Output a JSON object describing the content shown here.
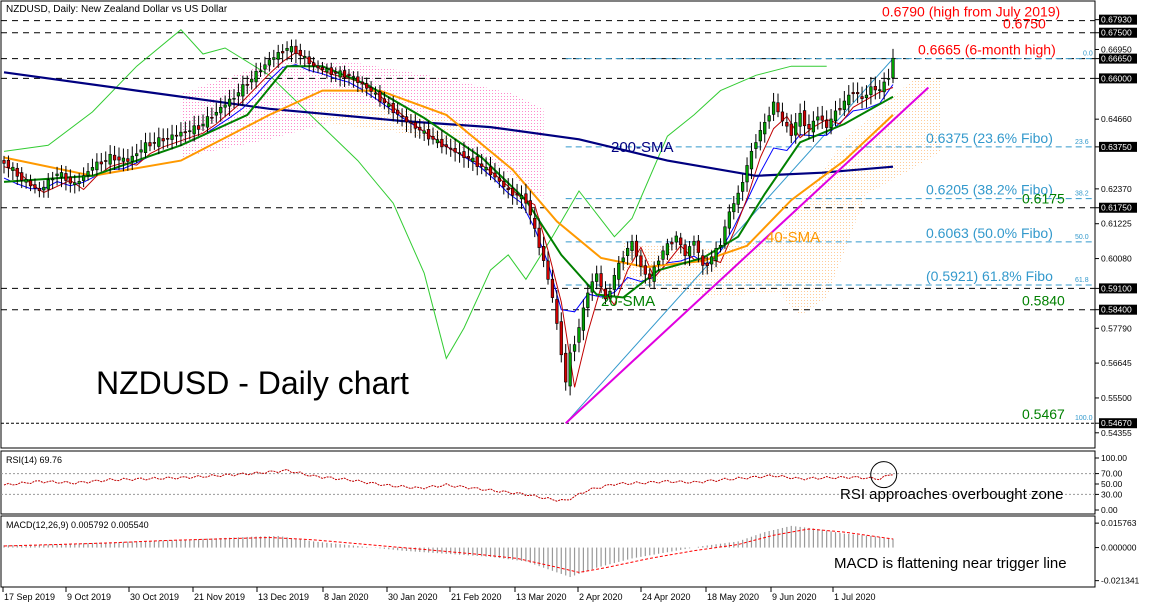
{
  "header": {
    "title": "NZDUSD, Daily:  New Zealand Dollar vs US Dollar",
    "big_title": "NZDUSD - Daily chart"
  },
  "colors": {
    "candle_up": "#00a000",
    "candle_down": "#d00000",
    "sma20": "#008000",
    "sma40": "#ff9900",
    "sma200": "#000080",
    "fast_line": "#c00000",
    "slow_line": "#0000ff",
    "lagging_span": "#33cc33",
    "cloud_red": "#ff88cc",
    "cloud_orange": "#ffcc99",
    "trendline": "#e000e0",
    "fibo": "#3399cc",
    "level_red": "#ff0000",
    "level_green": "#008000",
    "macd_signal": "#ff0000",
    "macd_hist": "#999999"
  },
  "chart_data": [
    {
      "type": "candlestick",
      "title": "NZDUSD, Daily:  New Zealand Dollar vs US Dollar",
      "x_labels": [
        "17 Sep 2019",
        "9 Oct 2019",
        "30 Oct 2019",
        "21 Nov 2019",
        "13 Dec 2019",
        "8 Jan 2020",
        "30 Jan 2020",
        "21 Feb 2020",
        "13 Mar 2020",
        "2 Apr 2020",
        "24 Apr 2020",
        "18 May 2020",
        "9 Jun 2020",
        "1 Jul 2020"
      ],
      "y_ticks": [
        "0.67930",
        "0.67500",
        "0.66950",
        "0.66650",
        "0.66000",
        "0.64660",
        "0.63750",
        "0.62370",
        "0.61750",
        "0.61225",
        "0.60080",
        "0.59100",
        "0.58400",
        "0.57790",
        "0.56645",
        "0.55500",
        "0.54670",
        "0.54355"
      ],
      "ylim": [
        0.5425,
        0.6805
      ],
      "ohlc_path": [
        [
          0,
          0.6325
        ],
        [
          4,
          0.627
        ],
        [
          8,
          0.623
        ],
        [
          12,
          0.629
        ],
        [
          16,
          0.625
        ],
        [
          20,
          0.631
        ],
        [
          24,
          0.634
        ],
        [
          28,
          0.633
        ],
        [
          32,
          0.638
        ],
        [
          36,
          0.64
        ],
        [
          40,
          0.642
        ],
        [
          44,
          0.644
        ],
        [
          48,
          0.649
        ],
        [
          52,
          0.654
        ],
        [
          56,
          0.66
        ],
        [
          60,
          0.666
        ],
        [
          64,
          0.67
        ],
        [
          66,
          0.669
        ],
        [
          70,
          0.664
        ],
        [
          74,
          0.662
        ],
        [
          78,
          0.661
        ],
        [
          82,
          0.657
        ],
        [
          86,
          0.652
        ],
        [
          90,
          0.647
        ],
        [
          94,
          0.643
        ],
        [
          98,
          0.639
        ],
        [
          102,
          0.636
        ],
        [
          106,
          0.633
        ],
        [
          110,
          0.629
        ],
        [
          114,
          0.623
        ],
        [
          118,
          0.62
        ],
        [
          120,
          0.61
        ],
        [
          122,
          0.6
        ],
        [
          124,
          0.588
        ],
        [
          126,
          0.57
        ],
        [
          127,
          0.56
        ],
        [
          128,
          0.569
        ],
        [
          130,
          0.578
        ],
        [
          132,
          0.59
        ],
        [
          134,
          0.596
        ],
        [
          136,
          0.587
        ],
        [
          138,
          0.595
        ],
        [
          140,
          0.602
        ],
        [
          142,
          0.606
        ],
        [
          144,
          0.598
        ],
        [
          146,
          0.594
        ],
        [
          148,
          0.601
        ],
        [
          150,
          0.605
        ],
        [
          152,
          0.608
        ],
        [
          154,
          0.602
        ],
        [
          156,
          0.607
        ],
        [
          158,
          0.598
        ],
        [
          160,
          0.601
        ],
        [
          162,
          0.606
        ],
        [
          164,
          0.616
        ],
        [
          166,
          0.622
        ],
        [
          168,
          0.631
        ],
        [
          170,
          0.64
        ],
        [
          172,
          0.645
        ],
        [
          174,
          0.652
        ],
        [
          176,
          0.646
        ],
        [
          178,
          0.642
        ],
        [
          180,
          0.648
        ],
        [
          182,
          0.643
        ],
        [
          184,
          0.648
        ],
        [
          186,
          0.644
        ],
        [
          188,
          0.649
        ],
        [
          190,
          0.652
        ],
        [
          192,
          0.656
        ],
        [
          194,
          0.653
        ],
        [
          196,
          0.657
        ],
        [
          198,
          0.656
        ],
        [
          200,
          0.661
        ],
        [
          201,
          0.666
        ]
      ],
      "sma20": [
        [
          0,
          0.626
        ],
        [
          20,
          0.628
        ],
        [
          40,
          0.638
        ],
        [
          55,
          0.648
        ],
        [
          64,
          0.664
        ],
        [
          72,
          0.664
        ],
        [
          82,
          0.658
        ],
        [
          95,
          0.647
        ],
        [
          108,
          0.634
        ],
        [
          118,
          0.62
        ],
        [
          126,
          0.602
        ],
        [
          134,
          0.589
        ],
        [
          140,
          0.588
        ],
        [
          148,
          0.597
        ],
        [
          158,
          0.601
        ],
        [
          166,
          0.608
        ],
        [
          172,
          0.622
        ],
        [
          180,
          0.639
        ],
        [
          190,
          0.645
        ],
        [
          201,
          0.654
        ]
      ],
      "sma40": [
        [
          0,
          0.634
        ],
        [
          20,
          0.628
        ],
        [
          40,
          0.633
        ],
        [
          60,
          0.648
        ],
        [
          72,
          0.656
        ],
        [
          85,
          0.656
        ],
        [
          100,
          0.648
        ],
        [
          115,
          0.63
        ],
        [
          125,
          0.613
        ],
        [
          135,
          0.601
        ],
        [
          145,
          0.598
        ],
        [
          158,
          0.6
        ],
        [
          168,
          0.605
        ],
        [
          178,
          0.62
        ],
        [
          190,
          0.633
        ],
        [
          201,
          0.648
        ]
      ],
      "sma200": [
        [
          0,
          0.662
        ],
        [
          30,
          0.656
        ],
        [
          60,
          0.65
        ],
        [
          90,
          0.646
        ],
        [
          110,
          0.644
        ],
        [
          130,
          0.64
        ],
        [
          150,
          0.633
        ],
        [
          170,
          0.628
        ],
        [
          185,
          0.629
        ],
        [
          201,
          0.631
        ]
      ],
      "trendline": [
        [
          127,
          0.5467
        ],
        [
          209,
          0.657
        ]
      ],
      "lagging_span": [
        [
          0,
          0.636
        ],
        [
          10,
          0.638
        ],
        [
          20,
          0.649
        ],
        [
          30,
          0.664
        ],
        [
          40,
          0.676
        ],
        [
          45,
          0.668
        ],
        [
          50,
          0.67
        ],
        [
          60,
          0.661
        ],
        [
          70,
          0.647
        ],
        [
          80,
          0.633
        ],
        [
          88,
          0.619
        ],
        [
          95,
          0.596
        ],
        [
          100,
          0.568
        ],
        [
          104,
          0.578
        ],
        [
          110,
          0.597
        ],
        [
          114,
          0.602
        ],
        [
          118,
          0.594
        ],
        [
          124,
          0.608
        ],
        [
          130,
          0.623
        ],
        [
          138,
          0.608
        ],
        [
          142,
          0.614
        ],
        [
          150,
          0.641
        ],
        [
          156,
          0.648
        ],
        [
          162,
          0.656
        ],
        [
          170,
          0.661
        ],
        [
          178,
          0.664
        ],
        [
          186,
          0.664
        ]
      ],
      "levels": [
        {
          "value": 0.679,
          "label": "0.6790 (high from July 2019)",
          "style": "red"
        },
        {
          "value": 0.675,
          "label": "0.6750",
          "style": "red"
        },
        {
          "value": 0.6665,
          "label": "0.6665 (6-month high)",
          "style": "red"
        },
        {
          "value": 0.66,
          "label": "",
          "style": "plain"
        },
        {
          "value": 0.6375,
          "label": "0.6375 (23.6% Fibo)",
          "style": "fibo",
          "tag": "23.6"
        },
        {
          "value": 0.6205,
          "label": "0.6205 (38.2% Fibo)",
          "style": "fibo",
          "tag": "38.2"
        },
        {
          "value": 0.6175,
          "label": "0.6175",
          "style": "green"
        },
        {
          "value": 0.6063,
          "label": "0.6063 (50.0% Fibo)",
          "style": "fibo",
          "tag": "50.0"
        },
        {
          "value": 0.5921,
          "label": "(0.5921) 61.8% Fibo",
          "style": "fibo",
          "tag": "61.8"
        },
        {
          "value": 0.591,
          "label": "",
          "style": "plain"
        },
        {
          "value": 0.584,
          "label": "0.5840",
          "style": "green"
        },
        {
          "value": 0.5467,
          "label": "0.5467",
          "style": "green",
          "tag": "100.0"
        }
      ],
      "fibo_top_tag": "0.0",
      "sma_labels": {
        "sma200": "200-SMA",
        "sma40": "40-SMA",
        "sma20": "20-SMA"
      }
    },
    {
      "type": "line",
      "title": "RSI(14) 69.76",
      "y_ticks": [
        "100.00",
        "70.00",
        "50.00",
        "30.00",
        "0.00"
      ],
      "ylim": [
        0,
        100
      ],
      "annotation": "RSI approaches overbought zone",
      "values": [
        [
          0,
          48
        ],
        [
          8,
          55
        ],
        [
          16,
          52
        ],
        [
          24,
          58
        ],
        [
          32,
          60
        ],
        [
          40,
          62
        ],
        [
          48,
          66
        ],
        [
          56,
          70
        ],
        [
          64,
          76
        ],
        [
          70,
          65
        ],
        [
          78,
          58
        ],
        [
          86,
          48
        ],
        [
          94,
          42
        ],
        [
          100,
          48
        ],
        [
          106,
          42
        ],
        [
          112,
          36
        ],
        [
          118,
          30
        ],
        [
          124,
          20
        ],
        [
          127,
          18
        ],
        [
          132,
          38
        ],
        [
          138,
          50
        ],
        [
          144,
          52
        ],
        [
          150,
          55
        ],
        [
          156,
          53
        ],
        [
          162,
          58
        ],
        [
          168,
          62
        ],
        [
          174,
          66
        ],
        [
          180,
          60
        ],
        [
          186,
          62
        ],
        [
          192,
          63
        ],
        [
          198,
          60
        ],
        [
          201,
          70
        ]
      ]
    },
    {
      "type": "bar",
      "title": "MACD(12,26,9) 0.005792 0.005540",
      "y_ticks": [
        "0.015763",
        "0.000000",
        "-0.021341"
      ],
      "ylim": [
        -0.0235,
        0.0165
      ],
      "annotation": "MACD is flattening near trigger line",
      "histogram": [
        [
          0,
          0.0015
        ],
        [
          10,
          0.002
        ],
        [
          20,
          0.003
        ],
        [
          30,
          0.004
        ],
        [
          40,
          0.005
        ],
        [
          48,
          0.006
        ],
        [
          56,
          0.007
        ],
        [
          62,
          0.0075
        ],
        [
          70,
          0.004
        ],
        [
          80,
          0.001
        ],
        [
          90,
          -0.002
        ],
        [
          100,
          -0.004
        ],
        [
          110,
          -0.006
        ],
        [
          118,
          -0.009
        ],
        [
          124,
          -0.015
        ],
        [
          128,
          -0.019
        ],
        [
          134,
          -0.013
        ],
        [
          142,
          -0.007
        ],
        [
          150,
          -0.003
        ],
        [
          158,
          0.001
        ],
        [
          166,
          0.004
        ],
        [
          172,
          0.01
        ],
        [
          178,
          0.014
        ],
        [
          184,
          0.012
        ],
        [
          190,
          0.009
        ],
        [
          196,
          0.0075
        ],
        [
          201,
          0.0058
        ]
      ],
      "signal": [
        [
          0,
          0.001
        ],
        [
          12,
          0.002
        ],
        [
          24,
          0.003
        ],
        [
          36,
          0.0045
        ],
        [
          48,
          0.0055
        ],
        [
          60,
          0.0065
        ],
        [
          70,
          0.005
        ],
        [
          82,
          0.002
        ],
        [
          94,
          -0.001
        ],
        [
          106,
          -0.004
        ],
        [
          116,
          -0.007
        ],
        [
          124,
          -0.012
        ],
        [
          130,
          -0.016
        ],
        [
          136,
          -0.013
        ],
        [
          146,
          -0.007
        ],
        [
          156,
          -0.002
        ],
        [
          166,
          0.002
        ],
        [
          174,
          0.008
        ],
        [
          182,
          0.012
        ],
        [
          190,
          0.01
        ],
        [
          201,
          0.0055
        ]
      ]
    }
  ]
}
